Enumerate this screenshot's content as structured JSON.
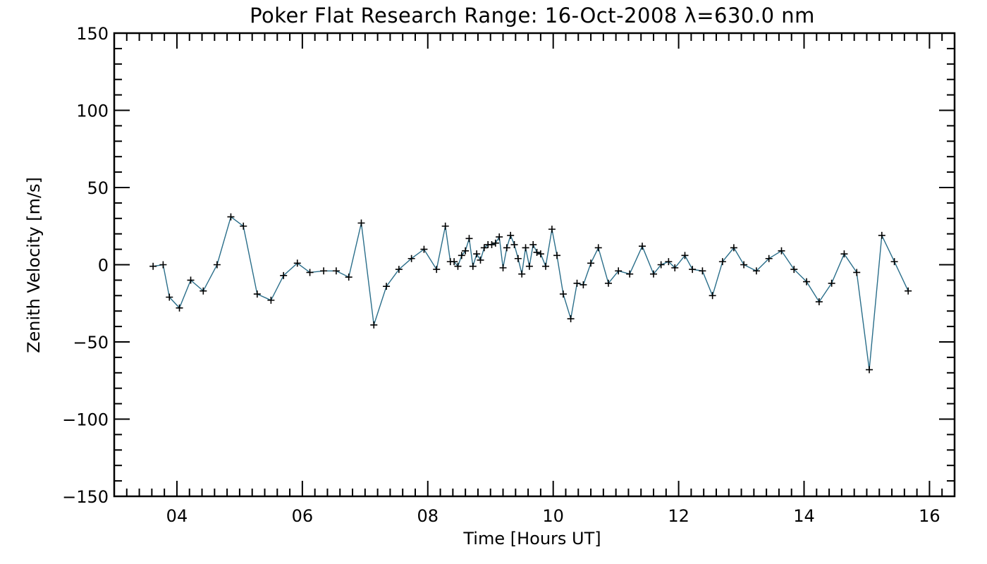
{
  "chart_data": {
    "type": "line",
    "title": "Poker Flat Research Range: 16-Oct-2008 λ=630.0 nm",
    "xlabel": "Time [Hours UT]",
    "ylabel": "Zenith Velocity [m/s]",
    "xlim": [
      3,
      16.4
    ],
    "ylim": [
      -150,
      150
    ],
    "x_ticks": [
      4,
      6,
      8,
      10,
      12,
      14,
      16
    ],
    "x_tick_labels": [
      "04",
      "06",
      "08",
      "10",
      "12",
      "14",
      "16"
    ],
    "y_ticks": [
      150,
      100,
      50,
      0,
      -50,
      -100,
      -150
    ],
    "y_tick_labels": [
      "150",
      "100",
      "50",
      "0",
      "−50",
      "−100",
      "−150"
    ],
    "grid": false,
    "line_color": "#2a6e8a",
    "marker_color": "#000000",
    "series": [
      {
        "marker": "plus",
        "x": [
          3.62,
          3.78,
          3.88,
          4.04,
          4.22,
          4.42,
          4.64,
          4.86,
          5.06,
          5.28,
          5.5,
          5.7,
          5.92,
          6.12,
          6.34,
          6.54,
          6.74,
          6.94,
          7.14,
          7.34,
          7.54,
          7.74,
          7.94,
          8.14,
          8.28,
          8.36,
          8.42,
          8.48,
          8.54,
          8.6,
          8.66,
          8.72,
          8.78,
          8.84,
          8.9,
          8.96,
          9.02,
          9.08,
          9.14,
          9.2,
          9.26,
          9.32,
          9.38,
          9.44,
          9.5,
          9.56,
          9.62,
          9.68,
          9.74,
          9.8,
          9.88,
          9.98,
          10.06,
          10.16,
          10.28,
          10.38,
          10.48,
          10.6,
          10.72,
          10.88,
          11.04,
          11.22,
          11.42,
          11.6,
          11.72,
          11.84,
          11.94,
          12.1,
          12.22,
          12.38,
          12.54,
          12.7,
          12.88,
          13.04,
          13.24,
          13.44,
          13.64,
          13.84,
          14.04,
          14.24,
          14.44,
          14.64,
          14.84,
          15.04,
          15.24,
          15.44,
          15.66
        ],
        "y": [
          -1,
          0,
          -21,
          -28,
          -10,
          -17,
          0,
          31,
          25,
          -19,
          -23,
          -7,
          1,
          -5,
          -4,
          -4,
          -8,
          27,
          -39,
          -14,
          -3,
          4,
          10,
          -3,
          25,
          2,
          2,
          -1,
          6,
          9,
          17,
          -1,
          7,
          3,
          11,
          13,
          13,
          14,
          18,
          -2,
          11,
          19,
          13,
          4,
          -6,
          11,
          -1,
          13,
          8,
          7,
          -1,
          23,
          6,
          -19,
          -35,
          -12,
          -13,
          1,
          11,
          -12,
          -4,
          -6,
          12,
          -6,
          0,
          2,
          -2,
          6,
          -3,
          -4,
          -20,
          2,
          11,
          0,
          -4,
          4,
          9,
          -3,
          -11,
          -24,
          -12,
          7,
          -5,
          -68,
          19,
          2,
          -17
        ]
      }
    ]
  }
}
